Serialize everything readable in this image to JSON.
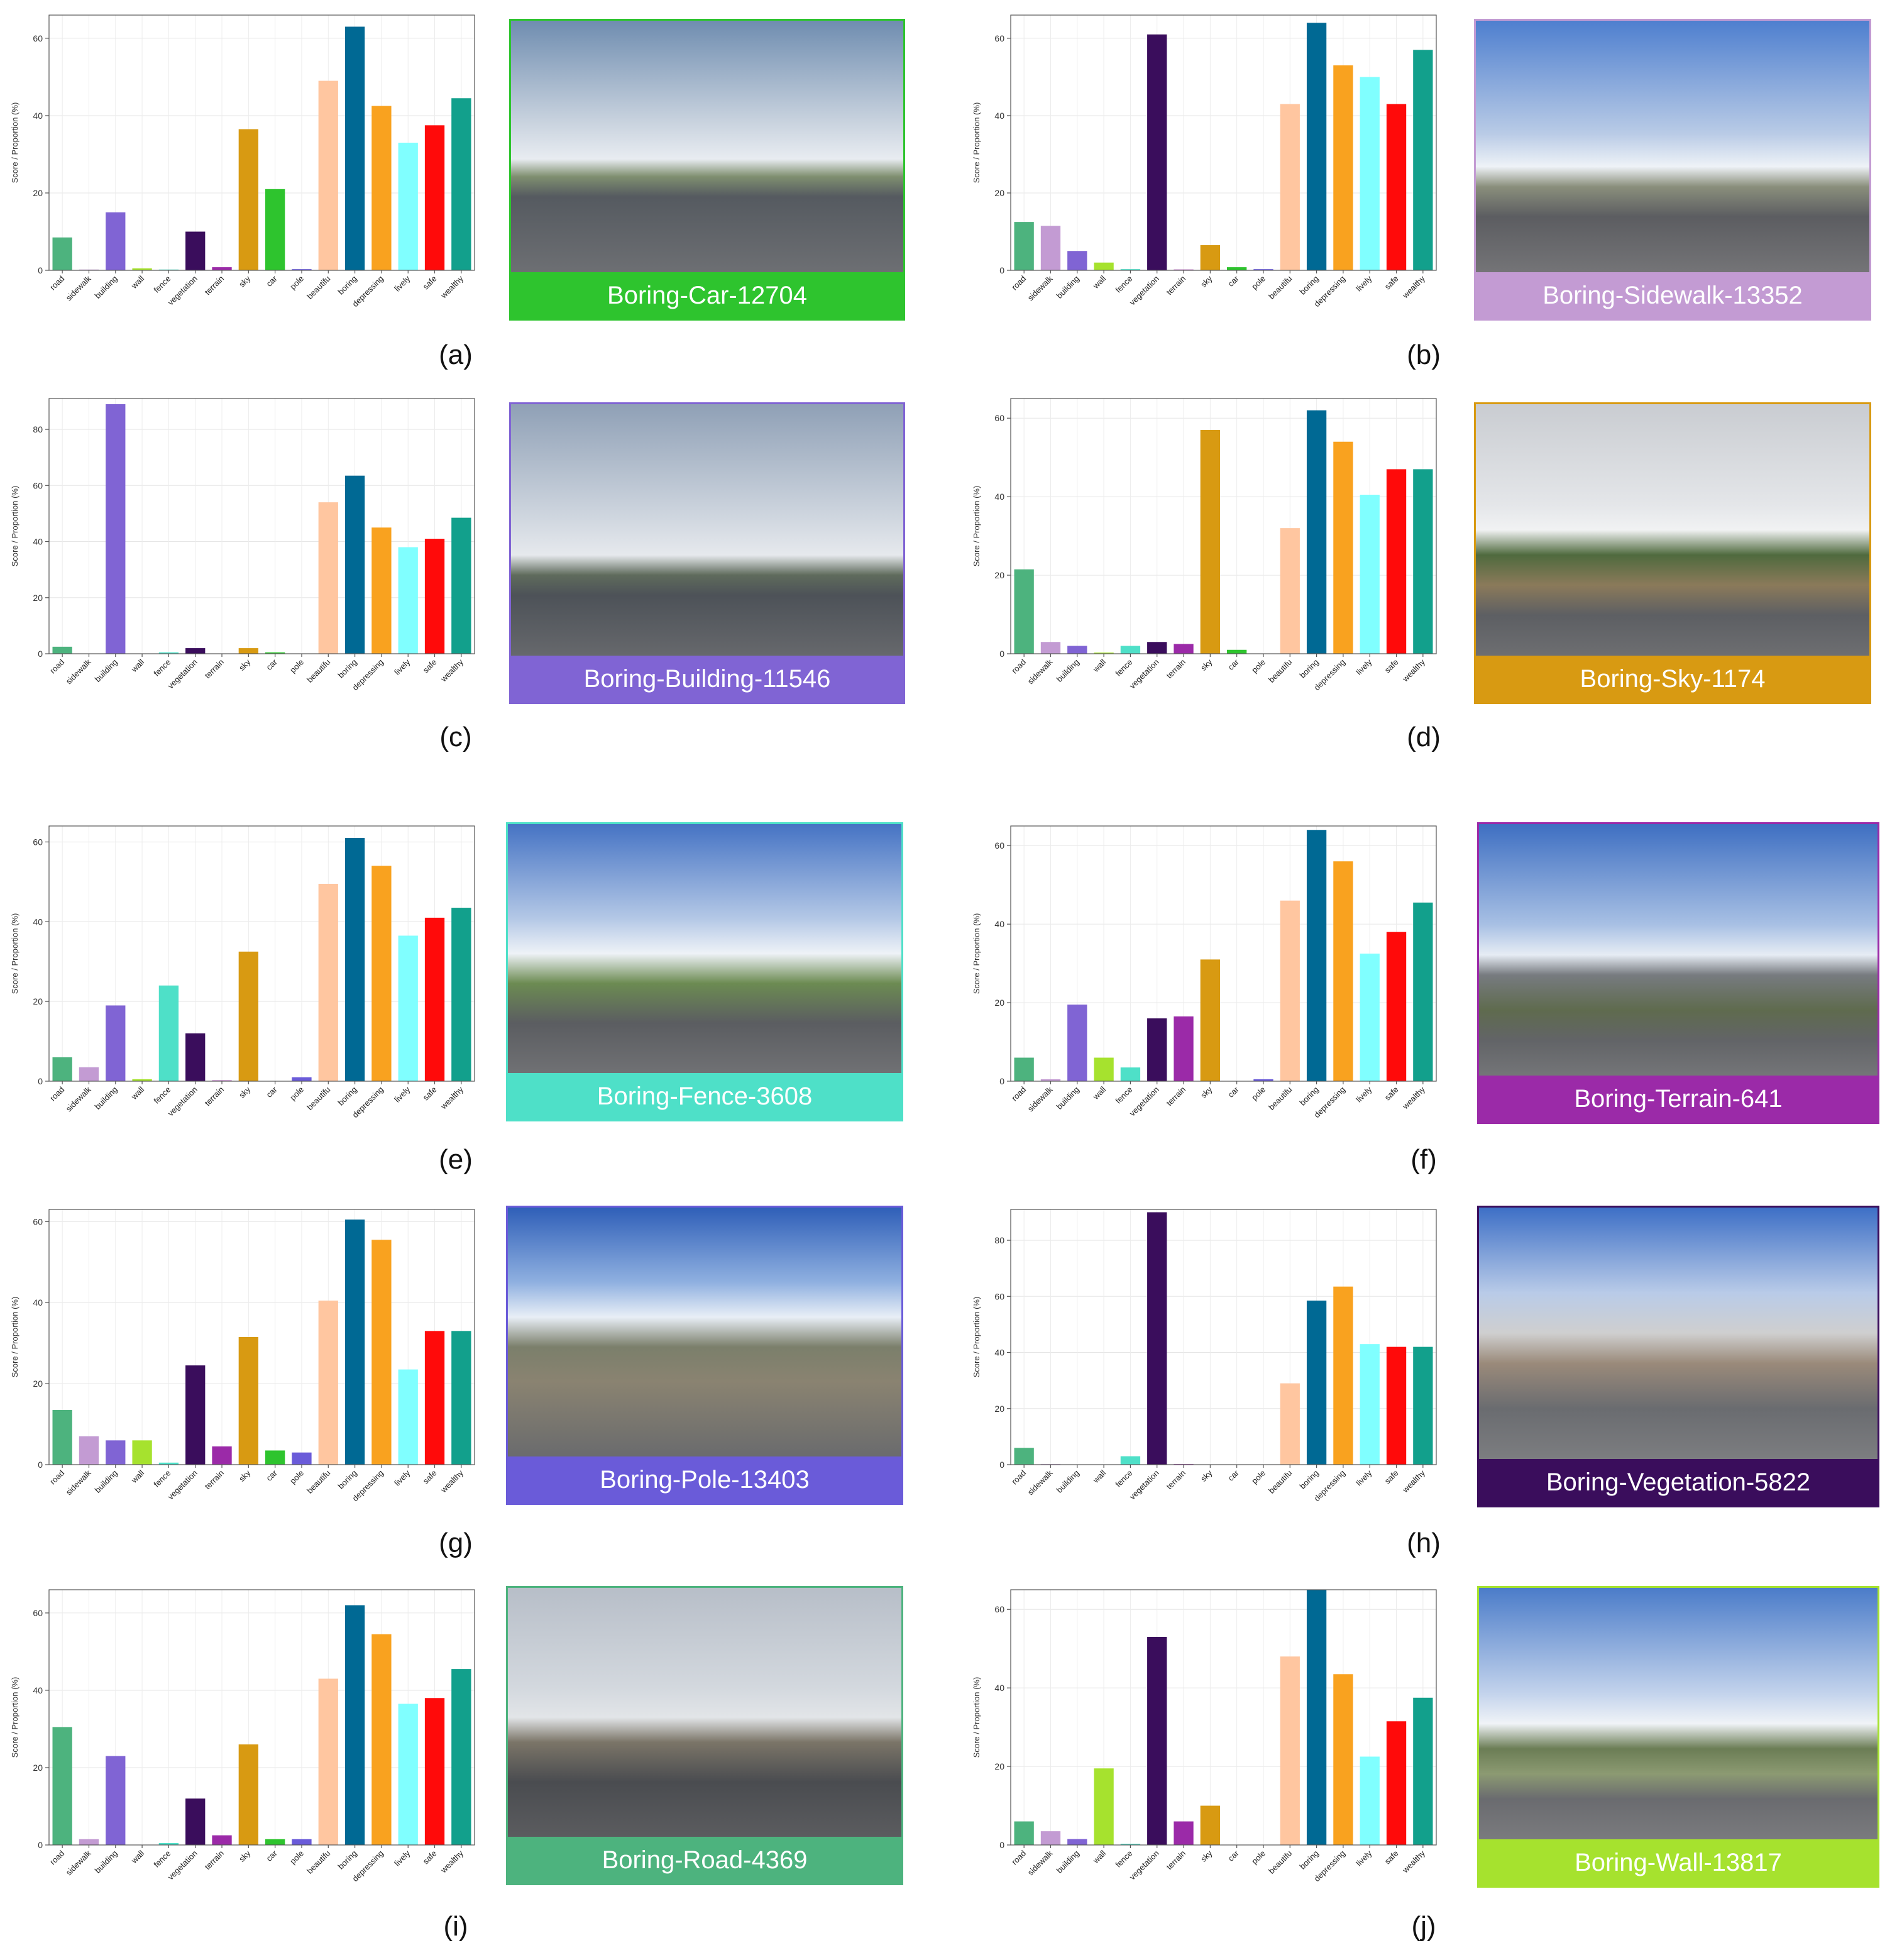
{
  "categories": [
    "road",
    "sidewalk",
    "building",
    "wall",
    "fence",
    "vegetation",
    "terrain",
    "sky",
    "car",
    "pole",
    "beautifu",
    "boring",
    "depressing",
    "lively",
    "safe",
    "wealthy"
  ],
  "colors": [
    "#4db37e",
    "#c39bd3",
    "#8064d4",
    "#a6e22e",
    "#4ee0c8",
    "#3a0d5c",
    "#9b2aa8",
    "#d89a12",
    "#2ec42e",
    "#6a5bd9",
    "#ffc6a0",
    "#006994",
    "#f9a21f",
    "#80ffff",
    "#ff0a0a",
    "#12a08c"
  ],
  "ylabel": "Score / Proportion (%)",
  "chart_data": [
    {
      "panel": "(a)",
      "type": "bar",
      "ylim": [
        0,
        66
      ],
      "yticks": [
        0,
        20,
        40,
        60
      ],
      "values": [
        8.5,
        0.2,
        15,
        0.5,
        0.2,
        10,
        0.8,
        36.5,
        21,
        0.3,
        49,
        63,
        42.5,
        33,
        37.5,
        44.5
      ],
      "caption": "Boring-Car-12704",
      "caption_color": "#2ec42e"
    },
    {
      "panel": "(b)",
      "type": "bar",
      "ylim": [
        0,
        66
      ],
      "yticks": [
        0,
        20,
        40,
        60
      ],
      "values": [
        12.5,
        11.5,
        5,
        2,
        0.3,
        61,
        0.2,
        6.5,
        0.8,
        0.3,
        43,
        64,
        53,
        50,
        43,
        57
      ],
      "caption": "Boring-Sidewalk-13352",
      "caption_color": "#c39bd3"
    },
    {
      "panel": "(c)",
      "type": "bar",
      "ylim": [
        0,
        91
      ],
      "yticks": [
        0,
        20,
        40,
        60,
        80
      ],
      "values": [
        2.5,
        0,
        89,
        0,
        0.5,
        2,
        0,
        2,
        0.5,
        0,
        54,
        63.5,
        45,
        38,
        41,
        48.5
      ],
      "caption": "Boring-Building-11546",
      "caption_color": "#8064d4"
    },
    {
      "panel": "(d)",
      "type": "bar",
      "ylim": [
        0,
        65
      ],
      "yticks": [
        0,
        20,
        40,
        60
      ],
      "values": [
        21.5,
        3,
        2,
        0.3,
        2,
        3,
        2.5,
        57,
        1,
        0,
        32,
        62,
        54,
        40.5,
        47,
        47
      ],
      "caption": "Boring-Sky-1174",
      "caption_color": "#d89a12"
    },
    {
      "panel": "(e)",
      "type": "bar",
      "ylim": [
        0,
        64
      ],
      "yticks": [
        0,
        20,
        40,
        60
      ],
      "values": [
        6,
        3.5,
        19,
        0.5,
        24,
        12,
        0.2,
        32.5,
        0,
        1,
        49.5,
        61,
        54,
        36.5,
        41,
        43.5
      ],
      "caption": "Boring-Fence-3608",
      "caption_color": "#4ee0c8"
    },
    {
      "panel": "(f)",
      "type": "bar",
      "ylim": [
        0,
        65
      ],
      "yticks": [
        0,
        20,
        40,
        60
      ],
      "values": [
        6,
        0.5,
        19.5,
        6,
        3.5,
        16,
        16.5,
        31,
        0,
        0.5,
        46,
        64,
        56,
        32.5,
        38,
        45.5
      ],
      "caption": "Boring-Terrain-641",
      "caption_color": "#9b2aa8"
    },
    {
      "panel": "(g)",
      "type": "bar",
      "ylim": [
        0,
        63
      ],
      "yticks": [
        0,
        20,
        40,
        60
      ],
      "values": [
        13.5,
        7,
        6,
        6,
        0.5,
        24.5,
        4.5,
        31.5,
        3.5,
        3,
        40.5,
        60.5,
        55.5,
        23.5,
        33,
        33
      ],
      "caption": "Boring-Pole-13403",
      "caption_color": "#6a5bd9"
    },
    {
      "panel": "(h)",
      "type": "bar",
      "ylim": [
        0,
        91
      ],
      "yticks": [
        0,
        20,
        40,
        60,
        80
      ],
      "values": [
        6,
        0.2,
        0,
        0,
        3,
        90,
        0.2,
        0,
        0,
        0,
        29,
        58.5,
        63.5,
        43,
        42,
        42
      ],
      "caption": "Boring-Vegetation-5822",
      "caption_color": "#3a0d5c"
    },
    {
      "panel": "(i)",
      "type": "bar",
      "ylim": [
        0,
        66
      ],
      "yticks": [
        0,
        20,
        40,
        60
      ],
      "values": [
        30.5,
        1.5,
        23,
        0,
        0.5,
        12,
        2.5,
        26,
        1.5,
        1.5,
        43,
        62,
        54.5,
        36.5,
        38,
        45.5
      ],
      "caption": "Boring-Road-4369",
      "caption_color": "#4db37e"
    },
    {
      "panel": "(j)",
      "type": "bar",
      "ylim": [
        0,
        65
      ],
      "yticks": [
        0,
        20,
        40,
        60
      ],
      "values": [
        6,
        3.5,
        1.5,
        19.5,
        0.3,
        53,
        6,
        10,
        0,
        0,
        48,
        65,
        43.5,
        22.5,
        31.5,
        37.5
      ],
      "caption": "Boring-Wall-13817",
      "caption_color": "#a6e22e"
    }
  ]
}
